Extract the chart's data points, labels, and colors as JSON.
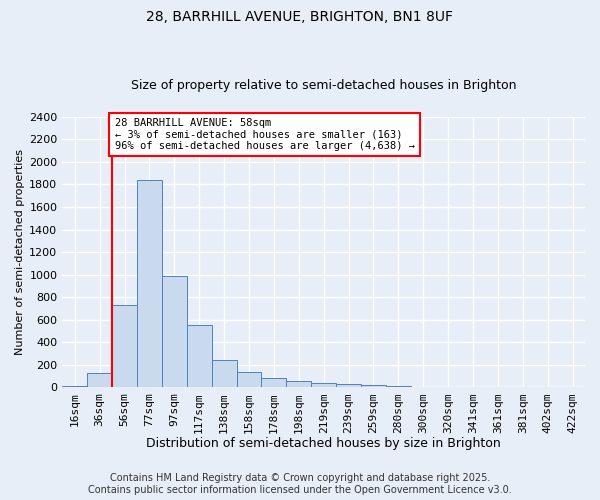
{
  "title1": "28, BARRHILL AVENUE, BRIGHTON, BN1 8UF",
  "title2": "Size of property relative to semi-detached houses in Brighton",
  "xlabel": "Distribution of semi-detached houses by size in Brighton",
  "ylabel": "Number of semi-detached properties",
  "categories": [
    "16sqm",
    "36sqm",
    "56sqm",
    "77sqm",
    "97sqm",
    "117sqm",
    "138sqm",
    "158sqm",
    "178sqm",
    "198sqm",
    "219sqm",
    "239sqm",
    "259sqm",
    "280sqm",
    "300sqm",
    "320sqm",
    "341sqm",
    "361sqm",
    "381sqm",
    "402sqm",
    "422sqm"
  ],
  "values": [
    15,
    130,
    730,
    1840,
    985,
    555,
    248,
    138,
    80,
    58,
    38,
    27,
    20,
    10,
    5,
    3,
    2,
    2,
    0,
    0,
    0
  ],
  "bar_color": "#c9d9ee",
  "bar_edge_color": "#5080c0",
  "red_line_index": 2,
  "annotation_text": "28 BARRHILL AVENUE: 58sqm\n← 3% of semi-detached houses are smaller (163)\n96% of semi-detached houses are larger (4,638) →",
  "annotation_box_color": "white",
  "annotation_box_edge_color": "red",
  "red_line_color": "red",
  "ylim": [
    0,
    2400
  ],
  "yticks": [
    0,
    200,
    400,
    600,
    800,
    1000,
    1200,
    1400,
    1600,
    1800,
    2000,
    2200,
    2400
  ],
  "footer": "Contains HM Land Registry data © Crown copyright and database right 2025.\nContains public sector information licensed under the Open Government Licence v3.0.",
  "background_color": "#e8eef7",
  "grid_color": "white",
  "title1_fontsize": 10,
  "title2_fontsize": 9,
  "xlabel_fontsize": 9,
  "ylabel_fontsize": 8,
  "tick_fontsize": 8,
  "footer_fontsize": 7
}
